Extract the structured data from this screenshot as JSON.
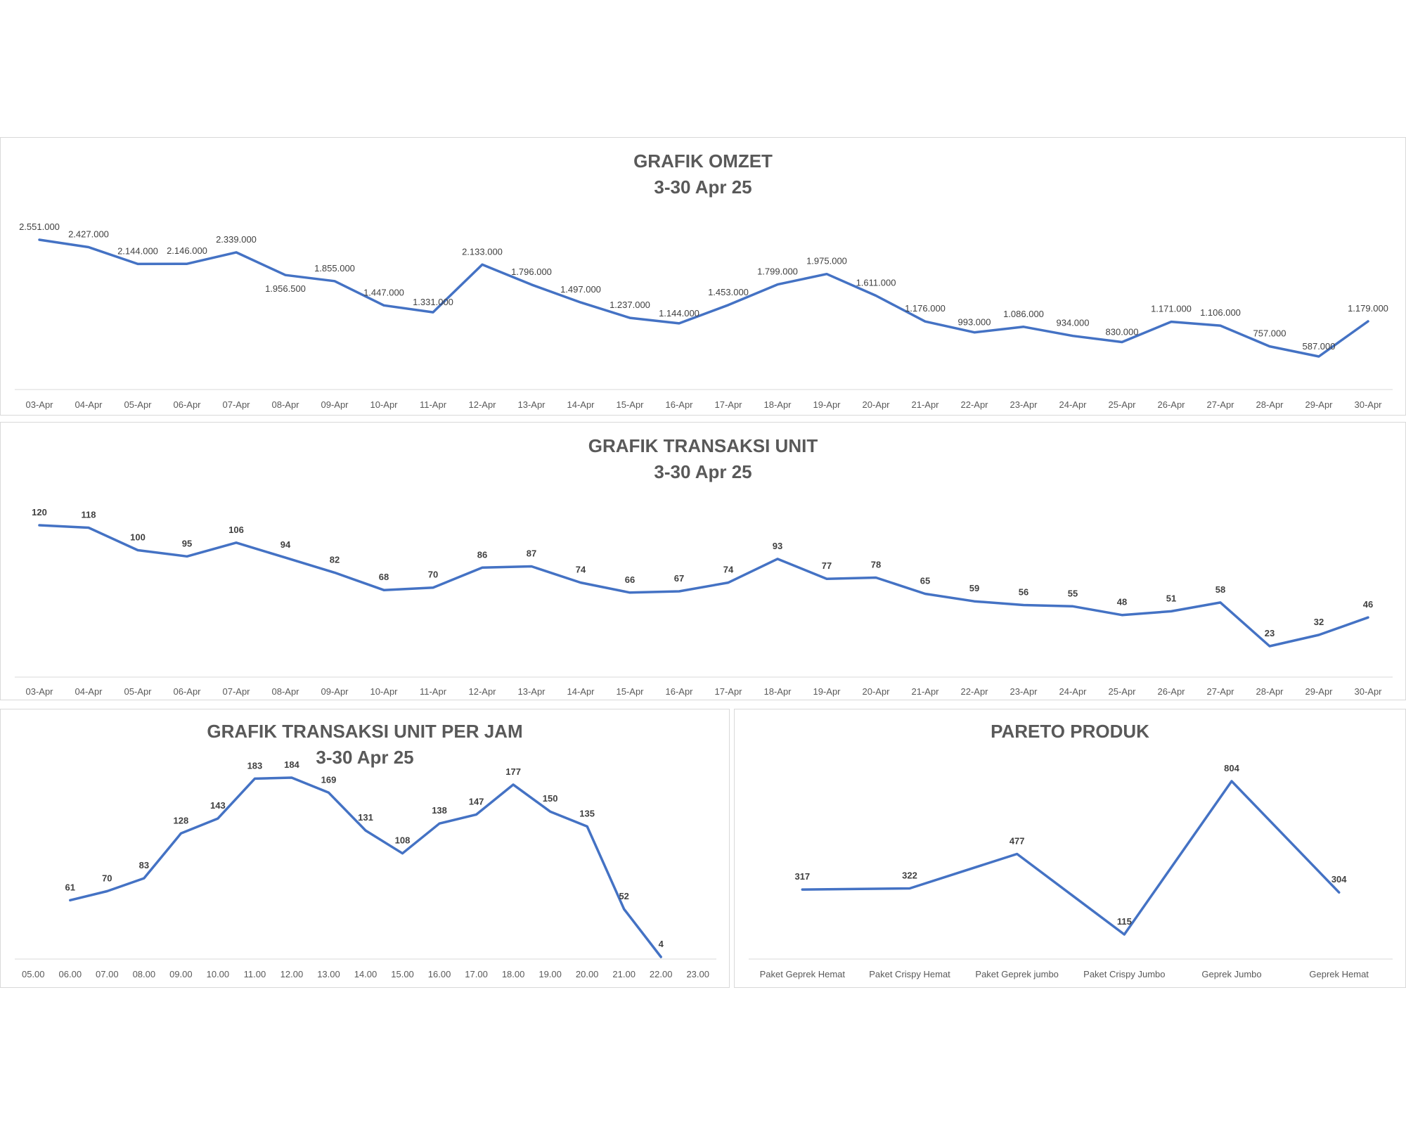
{
  "chart_data": [
    {
      "id": "omzet",
      "type": "line",
      "title": "GRAFIK OMZET",
      "subtitle": "3-30 Apr 25",
      "categories": [
        "03-Apr",
        "04-Apr",
        "05-Apr",
        "06-Apr",
        "07-Apr",
        "08-Apr",
        "09-Apr",
        "10-Apr",
        "11-Apr",
        "12-Apr",
        "13-Apr",
        "14-Apr",
        "15-Apr",
        "16-Apr",
        "17-Apr",
        "18-Apr",
        "19-Apr",
        "20-Apr",
        "21-Apr",
        "22-Apr",
        "23-Apr",
        "24-Apr",
        "25-Apr",
        "26-Apr",
        "27-Apr",
        "28-Apr",
        "29-Apr",
        "30-Apr"
      ],
      "values": [
        2551000,
        2427000,
        2144000,
        2146000,
        2339000,
        1956500,
        1855000,
        1447000,
        1331000,
        2133000,
        1796000,
        1497000,
        1237000,
        1144000,
        1453000,
        1799000,
        1975000,
        1611000,
        1176000,
        993000,
        1086000,
        934000,
        830000,
        1171000,
        1106000,
        757000,
        587000,
        1179000
      ],
      "data_labels": [
        "2.551.000",
        "2.427.000",
        "2.144.000",
        "2.146.000",
        "2.339.000",
        "1.956.500",
        "1.855.000",
        "1.447.000",
        "1.331.000",
        "2.133.000",
        "1.796.000",
        "1.497.000",
        "1.237.000",
        "1.144.000",
        "1.453.000",
        "1.799.000",
        "1.975.000",
        "1.611.000",
        "1.176.000",
        "993.000",
        "1.086.000",
        "934.000",
        "830.000",
        "1.171.000",
        "1.106.000",
        "757.000",
        "587.000",
        "1.179.000"
      ],
      "label_style": "normal",
      "color": "#4472c4"
    },
    {
      "id": "unit",
      "type": "line",
      "title": "GRAFIK TRANSAKSI UNIT",
      "subtitle": "3-30 Apr 25",
      "categories": [
        "03-Apr",
        "04-Apr",
        "05-Apr",
        "06-Apr",
        "07-Apr",
        "08-Apr",
        "09-Apr",
        "10-Apr",
        "11-Apr",
        "12-Apr",
        "13-Apr",
        "14-Apr",
        "15-Apr",
        "16-Apr",
        "17-Apr",
        "18-Apr",
        "19-Apr",
        "20-Apr",
        "21-Apr",
        "22-Apr",
        "23-Apr",
        "24-Apr",
        "25-Apr",
        "26-Apr",
        "27-Apr",
        "28-Apr",
        "29-Apr",
        "30-Apr"
      ],
      "values": [
        120,
        118,
        100,
        95,
        106,
        94,
        82,
        68,
        70,
        86,
        87,
        74,
        66,
        67,
        74,
        93,
        77,
        78,
        65,
        59,
        56,
        55,
        48,
        51,
        58,
        23,
        32,
        46
      ],
      "data_labels": [
        "120",
        "118",
        "100",
        "95",
        "106",
        "94",
        "82",
        "68",
        "70",
        "86",
        "87",
        "74",
        "66",
        "67",
        "74",
        "93",
        "77",
        "78",
        "65",
        "59",
        "56",
        "55",
        "48",
        "51",
        "58",
        "23",
        "32",
        "46"
      ],
      "label_style": "bold",
      "color": "#4472c4"
    },
    {
      "id": "jam",
      "type": "line",
      "title": "GRAFIK TRANSAKSI UNIT PER JAM",
      "subtitle": "3-30 Apr 25",
      "categories": [
        "05.00",
        "06.00",
        "07.00",
        "08.00",
        "09.00",
        "10.00",
        "11.00",
        "12.00",
        "13.00",
        "14.00",
        "15.00",
        "16.00",
        "17.00",
        "18.00",
        "19.00",
        "20.00",
        "21.00",
        "22.00",
        "23.00"
      ],
      "values": [
        null,
        61,
        70,
        83,
        128,
        143,
        183,
        184,
        169,
        131,
        108,
        138,
        147,
        177,
        150,
        135,
        52,
        4,
        null
      ],
      "data_labels": [
        "",
        "61",
        "70",
        "83",
        "128",
        "143",
        "183",
        "184",
        "169",
        "131",
        "108",
        "138",
        "147",
        "177",
        "150",
        "135",
        "52",
        "4",
        ""
      ],
      "label_style": "bold",
      "color": "#4472c4"
    },
    {
      "id": "pareto",
      "type": "line",
      "title": "PARETO PRODUK",
      "subtitle": "",
      "categories": [
        "Paket Geprek Hemat",
        "Paket Crispy Hemat",
        "Paket Geprek jumbo",
        "Paket Crispy Jumbo",
        "Geprek Jumbo",
        "Geprek Hemat"
      ],
      "values": [
        317,
        322,
        477,
        115,
        804,
        304
      ],
      "data_labels": [
        "317",
        "322",
        "477",
        "115",
        "804",
        "304"
      ],
      "label_style": "bold",
      "color": "#4472c4"
    }
  ]
}
